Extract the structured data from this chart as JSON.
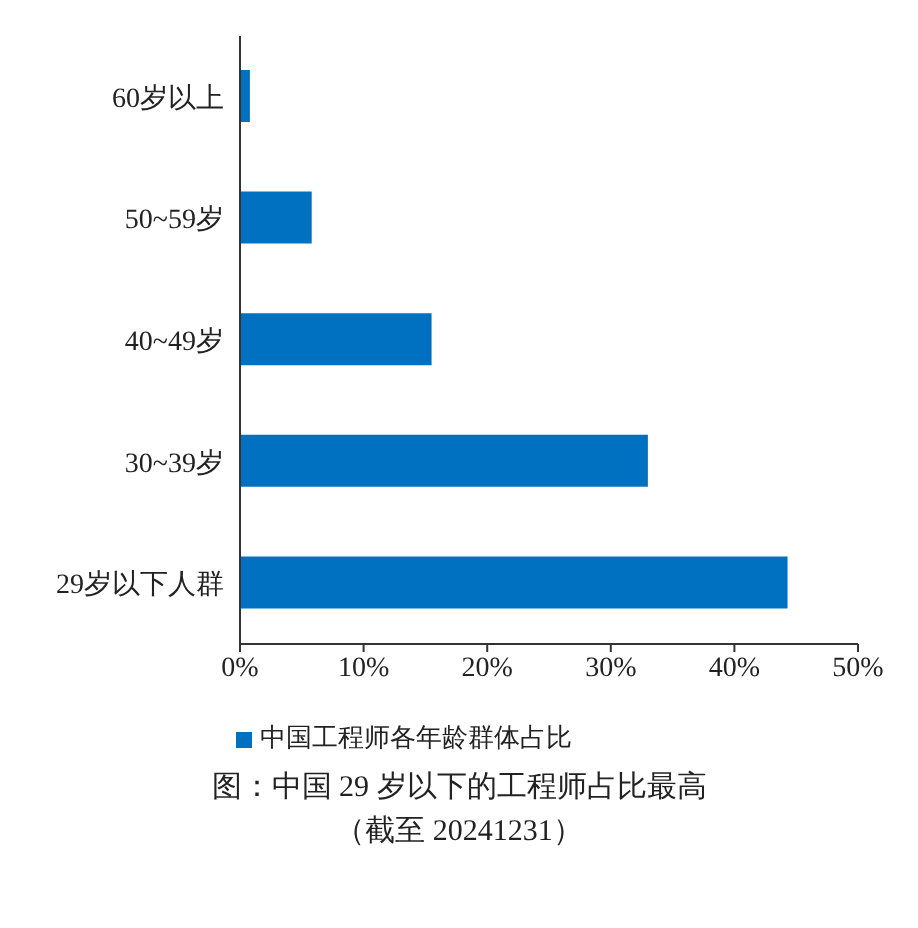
{
  "chart_data": {
    "type": "bar",
    "orientation": "horizontal",
    "categories": [
      "60岁以上",
      "50~59岁",
      "40~49岁",
      "30~39岁",
      "29岁以下人群"
    ],
    "series": [
      {
        "name": "中国工程师各年龄群体占比",
        "color": "#0070c0",
        "values": [
          0.8,
          5.8,
          15.5,
          33.0,
          44.3
        ]
      }
    ],
    "xlim": [
      0,
      50
    ],
    "xticks": [
      {
        "value": 0,
        "label": "0%"
      },
      {
        "value": 10,
        "label": "10%"
      },
      {
        "value": 20,
        "label": "20%"
      },
      {
        "value": 30,
        "label": "30%"
      },
      {
        "value": 40,
        "label": "40%"
      },
      {
        "value": 50,
        "label": "50%"
      }
    ],
    "grid": false,
    "legend": "bottom",
    "annotations": [
      "图：中国 29 岁以下的工程师占比最高",
      "（截至 20241231）"
    ]
  }
}
